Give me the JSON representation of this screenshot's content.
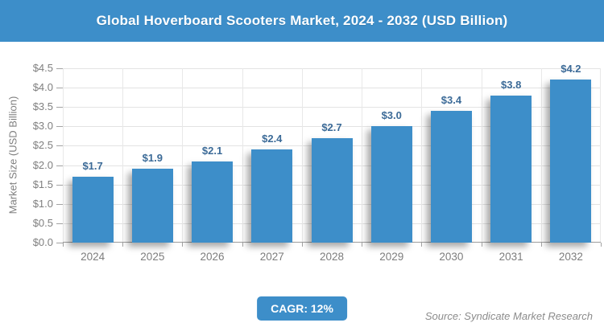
{
  "header": {
    "title": "Global Hoverboard Scooters Market, 2024 - 2032 (USD Billion)"
  },
  "colors": {
    "accent": "#3d8ec9"
  },
  "chart_data": {
    "type": "bar",
    "title": "Global Hoverboard Scooters Market, 2024 - 2032 (USD Billion)",
    "categories": [
      "2024",
      "2025",
      "2026",
      "2027",
      "2028",
      "2029",
      "2030",
      "2031",
      "2032"
    ],
    "values": [
      1.7,
      1.9,
      2.1,
      2.4,
      2.7,
      3.0,
      3.4,
      3.8,
      4.2
    ],
    "value_labels": [
      "$1.7",
      "$1.9",
      "$2.1",
      "$2.4",
      "$2.7",
      "$3.0",
      "$3.4",
      "$3.8",
      "$4.2"
    ],
    "xlabel": "",
    "ylabel": "Market Size (USD Billion)",
    "ylim": [
      0,
      4.5
    ],
    "ytick_step": 0.5,
    "ytick_labels": [
      "$0.0",
      "$0.5",
      "$1.0",
      "$1.5",
      "$2.0",
      "$2.5",
      "$3.0",
      "$3.5",
      "$4.0",
      "$4.5"
    ],
    "grid": true,
    "legend_position": "none",
    "colors": {
      "bar": "#3d8ec9",
      "value_label": "#3b6a97",
      "axis_text": "#7f7f7f",
      "gridline": "#e3e3e3"
    }
  },
  "footer": {
    "cagr_label": "CAGR: 12%",
    "source": "Source: Syndicate Market Research"
  }
}
